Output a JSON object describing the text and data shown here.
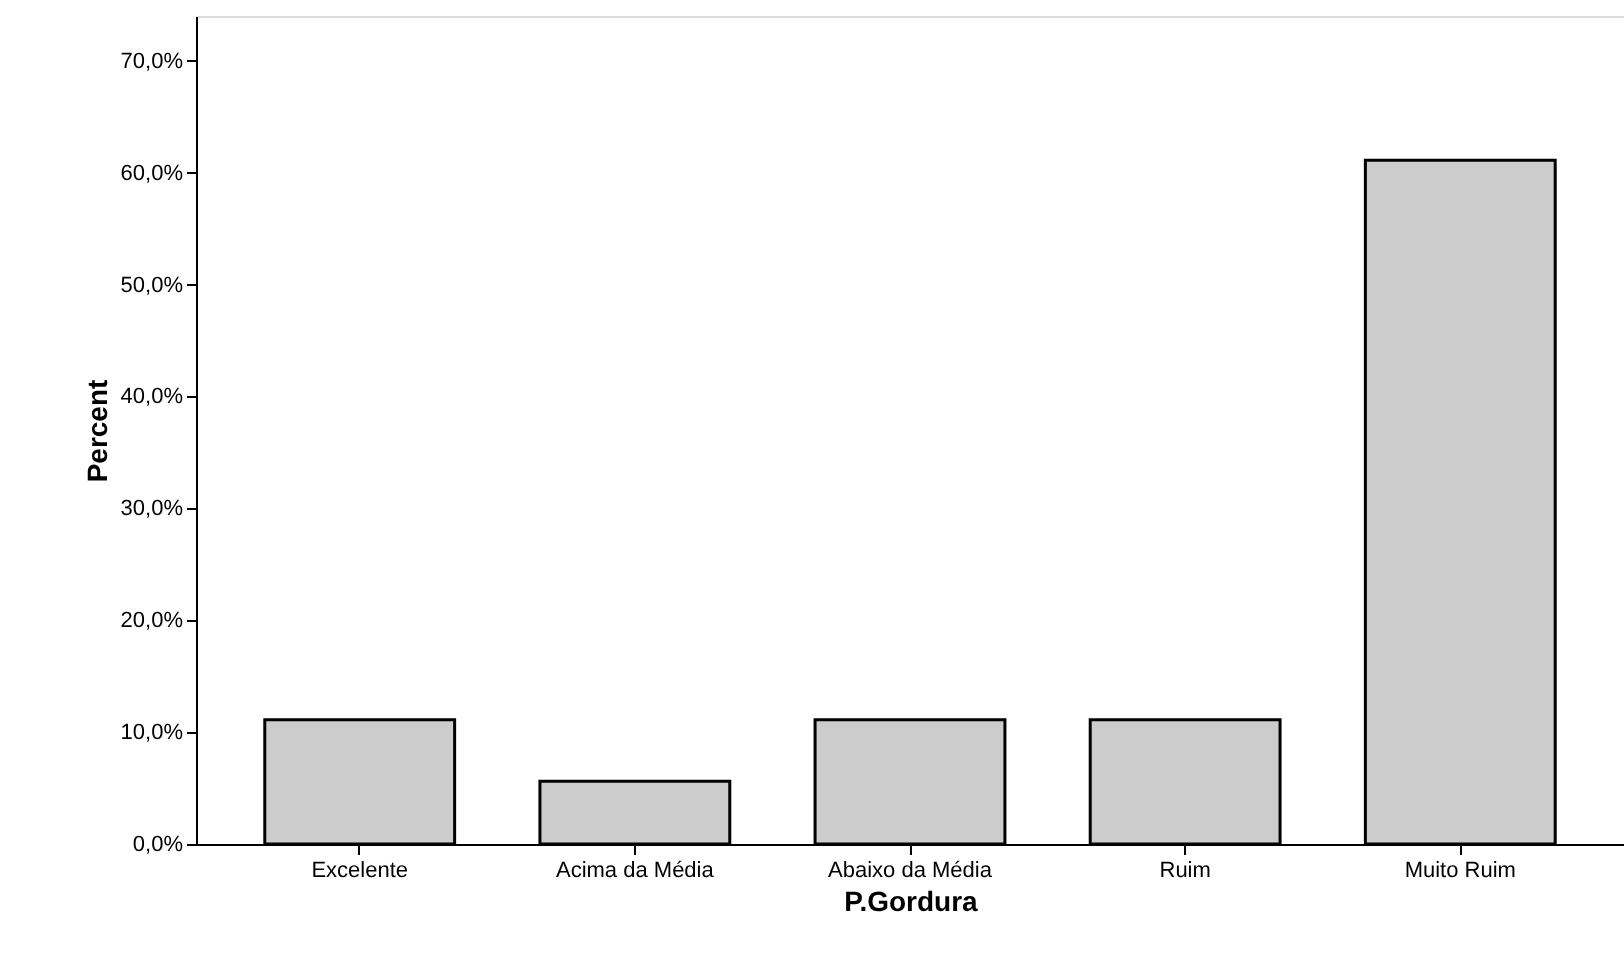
{
  "chart_data": {
    "type": "bar",
    "xlabel": "P.Gordura",
    "ylabel": "Percent",
    "categories": [
      "Excelente",
      "Acima da Média",
      "Abaixo da Média",
      "Ruim",
      "Muito Ruim"
    ],
    "values": [
      11.1,
      5.6,
      11.1,
      11.1,
      61.1
    ],
    "color": "#cccccc",
    "ylim": [
      0,
      74
    ],
    "yticks": [
      {
        "value": 0,
        "label": "0,0%"
      },
      {
        "value": 10,
        "label": "10,0%"
      },
      {
        "value": 20,
        "label": "20,0%"
      },
      {
        "value": 30,
        "label": "30,0%"
      },
      {
        "value": 40,
        "label": "40,0%"
      },
      {
        "value": 50,
        "label": "50,0%"
      },
      {
        "value": 60,
        "label": "60,0%"
      },
      {
        "value": 70,
        "label": "70,0%"
      }
    ],
    "grid": false
  }
}
